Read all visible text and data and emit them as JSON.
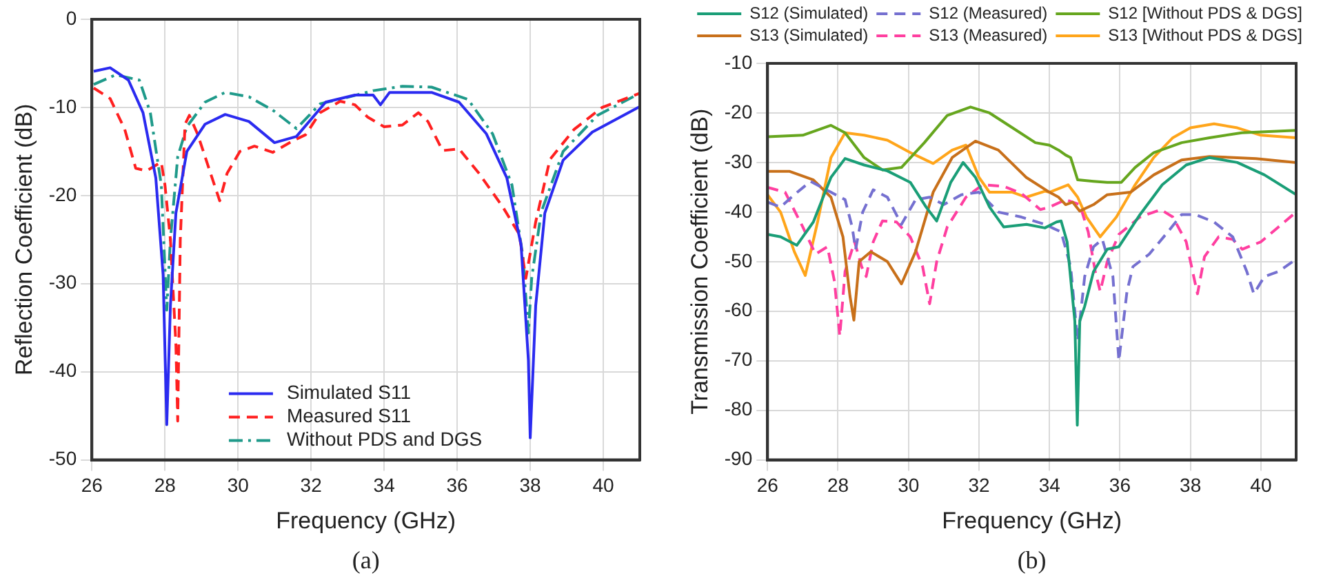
{
  "chart_data": [
    {
      "type": "line",
      "xlabel": "Frequency (GHz)",
      "ylabel": "Reflection Coefficient (dB)",
      "xlim": [
        26,
        41
      ],
      "xticks": [
        26,
        28,
        30,
        32,
        34,
        36,
        38,
        40
      ],
      "ylim": [
        -50,
        0
      ],
      "yticks": [
        0,
        -10,
        -20,
        -30,
        -40,
        -50
      ],
      "grid": true,
      "legend": "bottom",
      "marker": "none",
      "annotations": [
        "(a)"
      ],
      "series": [
        {
          "name": "Simulated S11",
          "color": "#2b2bf0",
          "line_style": "solid",
          "x": [
            26.05,
            26.5,
            27.0,
            27.4,
            27.75,
            27.95,
            28.05,
            28.15,
            28.3,
            28.6,
            29.1,
            29.65,
            30.3,
            31.0,
            31.6,
            32.4,
            33.2,
            33.7,
            33.9,
            34.15,
            35.3,
            36.05,
            36.8,
            37.36,
            37.75,
            37.95,
            38.0,
            38.15,
            38.4,
            38.9,
            39.7,
            41
          ],
          "values": [
            -5.9,
            -5.5,
            -6.9,
            -10.6,
            -18,
            -29,
            -46,
            -32.5,
            -22,
            -15,
            -11.9,
            -10.8,
            -11.6,
            -14,
            -13.3,
            -9.4,
            -8.6,
            -8.6,
            -9.7,
            -8.3,
            -8.3,
            -9.4,
            -13,
            -18,
            -25.6,
            -38.7,
            -47.5,
            -32.5,
            -22,
            -16,
            -12.8,
            -9.9
          ]
        },
        {
          "name": "Measured S11",
          "color": "#ff2020",
          "line_style": "dashed",
          "x": [
            26.05,
            26.5,
            26.9,
            27.2,
            27.5,
            27.9,
            28.0,
            28.15,
            28.3,
            28.35,
            28.42,
            28.55,
            28.67,
            28.9,
            29.25,
            29.5,
            29.7,
            30.05,
            30.45,
            30.95,
            31.5,
            31.85,
            32.25,
            32.8,
            33.2,
            33.55,
            34.0,
            34.5,
            34.94,
            35.2,
            35.6,
            36.05,
            36.6,
            37.25,
            37.7,
            37.88,
            38.15,
            38.54,
            39.2,
            39.97,
            41
          ],
          "values": [
            -7.8,
            -9,
            -12.5,
            -16.9,
            -17.2,
            -16.2,
            -18.8,
            -25,
            -36.9,
            -45.6,
            -25,
            -11.9,
            -10.9,
            -13.1,
            -17.5,
            -20.6,
            -17.5,
            -15,
            -14.4,
            -15.1,
            -13.8,
            -13.1,
            -10.6,
            -9.3,
            -9.7,
            -11.1,
            -12.2,
            -12,
            -10.6,
            -11.6,
            -14.9,
            -14.7,
            -17.5,
            -21.3,
            -24.4,
            -29.4,
            -23,
            -15.9,
            -12.5,
            -10,
            -8.4
          ]
        },
        {
          "name": "Without PDS and DGS",
          "color": "#1f9a8a",
          "line_style": "dashdot",
          "x": [
            26.05,
            26.65,
            27.3,
            27.6,
            27.9,
            28.05,
            28.15,
            28.35,
            28.6,
            29.1,
            29.65,
            30.3,
            30.95,
            31.6,
            32.25,
            33.05,
            33.7,
            34.5,
            35.3,
            36.3,
            36.97,
            37.5,
            37.8,
            37.95,
            38.04,
            38.3,
            38.9,
            39.84,
            41
          ],
          "values": [
            -7.4,
            -6.3,
            -6.9,
            -10.6,
            -18.8,
            -33,
            -25,
            -15.6,
            -12.2,
            -9.4,
            -8.3,
            -8.8,
            -10.3,
            -12.4,
            -9.6,
            -8.8,
            -8.1,
            -7.6,
            -7.7,
            -9.1,
            -13,
            -18.8,
            -26.9,
            -35.6,
            -29.4,
            -21.9,
            -15,
            -10.9,
            -8.4
          ]
        }
      ]
    },
    {
      "type": "line",
      "xlabel": "Frequency (GHz)",
      "ylabel": "Transmission Coefficient (dB)",
      "xlim": [
        26,
        41
      ],
      "xticks": [
        26,
        28,
        30,
        32,
        34,
        36,
        38,
        40
      ],
      "ylim": [
        -90,
        -10
      ],
      "yticks": [
        -10,
        -20,
        -30,
        -40,
        -50,
        -60,
        -70,
        -80,
        -90
      ],
      "grid": true,
      "legend": "top",
      "marker": "none",
      "annotations": [
        "(b)"
      ],
      "series": [
        {
          "name": "S12 (Simulated)",
          "color": "#1a9e77",
          "line_style": "solid",
          "x": [
            26,
            26.37,
            26.83,
            27.3,
            27.8,
            28.2,
            28.74,
            29.4,
            30.05,
            30.5,
            30.8,
            31.2,
            31.55,
            31.9,
            32.3,
            32.7,
            33.35,
            33.87,
            34.2,
            34.33,
            34.5,
            34.72,
            34.79,
            34.86,
            35.0,
            35.25,
            35.64,
            35.97,
            36.57,
            37.2,
            37.88,
            38.54,
            39.33,
            40.1,
            41
          ],
          "values": [
            -44.5,
            -45,
            -46.7,
            -42,
            -33,
            -29.2,
            -30.5,
            -31.7,
            -34,
            -39,
            -41.8,
            -34,
            -30,
            -33,
            -39,
            -43,
            -42.5,
            -43.2,
            -42,
            -41.8,
            -46,
            -62,
            -83,
            -62,
            -59,
            -52,
            -47.5,
            -47,
            -40.5,
            -34.5,
            -30.5,
            -29,
            -30,
            -32.5,
            -36.5
          ]
        },
        {
          "name": "S12 (Measured)",
          "color": "#7570d0",
          "line_style": "dashed",
          "x": [
            26,
            26.37,
            26.76,
            27.22,
            27.8,
            28.2,
            28.4,
            28.5,
            28.7,
            29.0,
            29.4,
            29.8,
            30.2,
            30.6,
            31.0,
            31.5,
            32.0,
            32.55,
            33.2,
            33.87,
            34.33,
            34.6,
            34.8,
            35.0,
            35.25,
            35.5,
            35.8,
            35.97,
            36.2,
            36.37,
            36.83,
            37.36,
            37.75,
            38.14,
            38.67,
            39.2,
            39.6,
            39.8,
            40.1,
            40.5,
            41
          ],
          "values": [
            -38,
            -39,
            -36.5,
            -33.8,
            -36,
            -37.5,
            -43,
            -47.5,
            -40,
            -35.5,
            -37,
            -42.5,
            -37.5,
            -37,
            -38.5,
            -36.5,
            -36,
            -40,
            -41,
            -42.5,
            -44,
            -51,
            -66,
            -53,
            -47,
            -45.5,
            -53,
            -70,
            -56,
            -51,
            -48.5,
            -44,
            -40.5,
            -40.5,
            -42,
            -45,
            -52,
            -56.5,
            -53,
            -52,
            -49.5
          ]
        },
        {
          "name": "S12 [Without PDS & DGS]",
          "color": "#66a61e",
          "line_style": "solid",
          "x": [
            26,
            27.0,
            27.8,
            28.2,
            28.74,
            29.26,
            29.8,
            30.45,
            31.1,
            31.76,
            32.3,
            32.95,
            33.6,
            34.0,
            34.26,
            34.46,
            34.6,
            34.8,
            35.25,
            35.64,
            36.04,
            36.43,
            36.96,
            37.75,
            38.54,
            39.46,
            41
          ],
          "values": [
            -24.8,
            -24.5,
            -22.5,
            -24,
            -29,
            -31.5,
            -31,
            -26,
            -20.5,
            -18.8,
            -20,
            -23,
            -26,
            -26.5,
            -27.5,
            -28.5,
            -29,
            -33.5,
            -33.8,
            -34,
            -34,
            -31,
            -28,
            -26,
            -25,
            -24,
            -23.5
          ]
        },
        {
          "name": "S13 (Simulated)",
          "color": "#c8701a",
          "line_style": "solid",
          "x": [
            26,
            26.63,
            27.3,
            27.8,
            28.14,
            28.34,
            28.45,
            28.6,
            28.93,
            29.4,
            29.8,
            30.2,
            30.7,
            31.24,
            31.9,
            32.55,
            33.34,
            34.0,
            34.26,
            34.46,
            34.66,
            34.86,
            35.25,
            35.64,
            36.3,
            36.96,
            37.75,
            38.54,
            39.86,
            41
          ],
          "values": [
            -31.8,
            -31.8,
            -33.5,
            -37,
            -45,
            -57,
            -61.8,
            -50,
            -48,
            -50,
            -54.5,
            -48,
            -36,
            -29,
            -25.7,
            -27.5,
            -33,
            -36,
            -37,
            -38.5,
            -38,
            -39.8,
            -38.5,
            -36.5,
            -36,
            -32.5,
            -29.5,
            -28.8,
            -29.2,
            -30
          ]
        },
        {
          "name": "S13 (Measured)",
          "color": "#ff3fa0",
          "line_style": "dashed",
          "x": [
            26,
            26.5,
            27.0,
            27.36,
            27.7,
            27.9,
            28.05,
            28.2,
            28.47,
            28.67,
            28.8,
            29.0,
            29.26,
            29.66,
            30.05,
            30.4,
            30.6,
            30.8,
            31.1,
            31.63,
            32.1,
            32.7,
            33.2,
            33.74,
            34.0,
            34.46,
            34.86,
            35.1,
            35.3,
            35.44,
            35.64,
            35.97,
            36.57,
            37.16,
            37.5,
            37.88,
            38.2,
            38.4,
            38.8,
            39.2,
            39.47,
            40.0,
            40.5,
            41
          ],
          "values": [
            -35,
            -36,
            -43,
            -48.5,
            -47,
            -54,
            -65,
            -52,
            -46,
            -51,
            -53,
            -46,
            -41.8,
            -42,
            -45,
            -51,
            -58.5,
            -50,
            -43,
            -37,
            -34.5,
            -34.8,
            -36.2,
            -39.5,
            -39,
            -37.5,
            -38.5,
            -44,
            -52,
            -56,
            -50,
            -44.5,
            -41,
            -39.5,
            -41,
            -46,
            -56.5,
            -49,
            -45,
            -45.5,
            -47.5,
            -46,
            -43,
            -40
          ]
        },
        {
          "name": "S13 [Without PDS & DGS]",
          "color": "#ffa51a",
          "line_style": "solid",
          "x": [
            26,
            26.37,
            26.76,
            27.07,
            27.42,
            27.8,
            28.2,
            28.74,
            29.4,
            30.05,
            30.7,
            31.24,
            31.63,
            32.0,
            32.3,
            32.95,
            33.34,
            33.87,
            34.0,
            34.53,
            34.8,
            35.05,
            35.44,
            35.9,
            36.43,
            36.96,
            37.5,
            38.0,
            38.67,
            39.33,
            40.0,
            41
          ],
          "values": [
            -36.5,
            -40,
            -48,
            -52.8,
            -42,
            -29,
            -24,
            -24.5,
            -25.5,
            -28,
            -30.2,
            -27.5,
            -26.5,
            -33,
            -36,
            -36,
            -37,
            -35.8,
            -36,
            -34.5,
            -37,
            -41,
            -45,
            -41,
            -34.5,
            -29,
            -25,
            -23,
            -22.2,
            -23,
            -24.5,
            -25
          ]
        }
      ]
    }
  ]
}
